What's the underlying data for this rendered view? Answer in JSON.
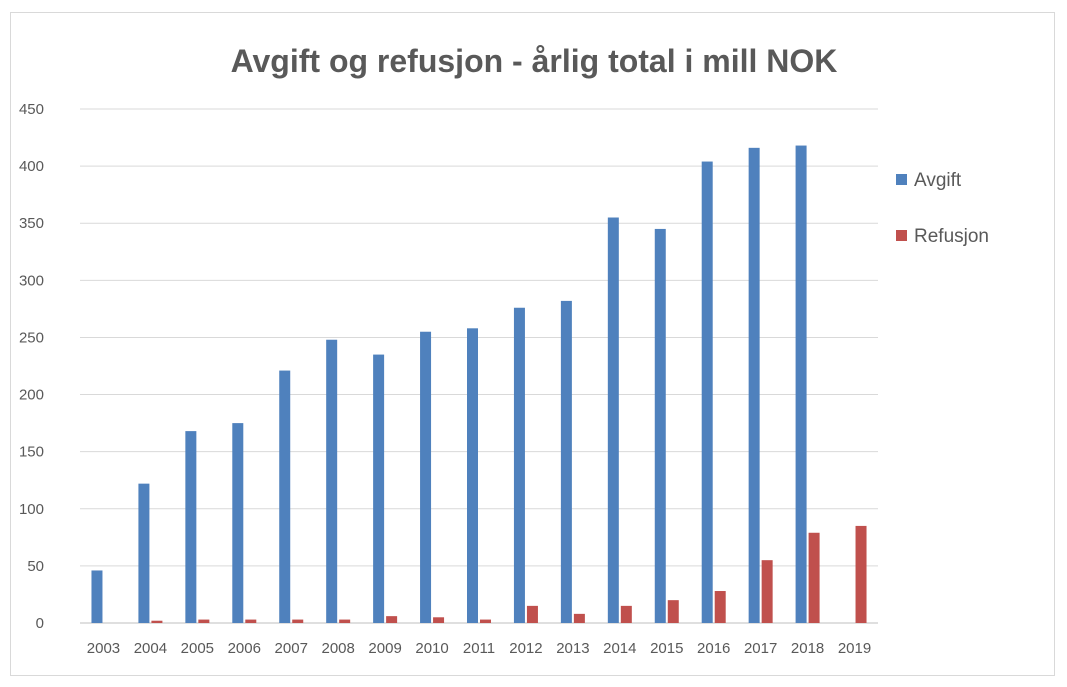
{
  "chart_data": {
    "type": "bar",
    "title": "Avgift og refusjon - årlig total i mill NOK",
    "xlabel": "",
    "ylabel": "",
    "ylim": [
      0,
      450
    ],
    "y_ticks": [
      0,
      50,
      100,
      150,
      200,
      250,
      300,
      350,
      400,
      450
    ],
    "grid": true,
    "legend_position": "right",
    "categories": [
      "2003",
      "2004",
      "2005",
      "2006",
      "2007",
      "2008",
      "2009",
      "2010",
      "2011",
      "2012",
      "2013",
      "2014",
      "2015",
      "2016",
      "2017",
      "2018",
      "2019"
    ],
    "series": [
      {
        "name": "Avgift",
        "color": "#4f81bd",
        "values": [
          46,
          122,
          168,
          175,
          221,
          248,
          235,
          255,
          258,
          276,
          282,
          355,
          345,
          404,
          416,
          418,
          0
        ]
      },
      {
        "name": "Refusjon",
        "color": "#c0504d",
        "values": [
          0,
          2,
          3,
          3,
          3,
          3,
          6,
          5,
          3,
          15,
          8,
          15,
          20,
          28,
          55,
          79,
          85
        ]
      }
    ]
  }
}
